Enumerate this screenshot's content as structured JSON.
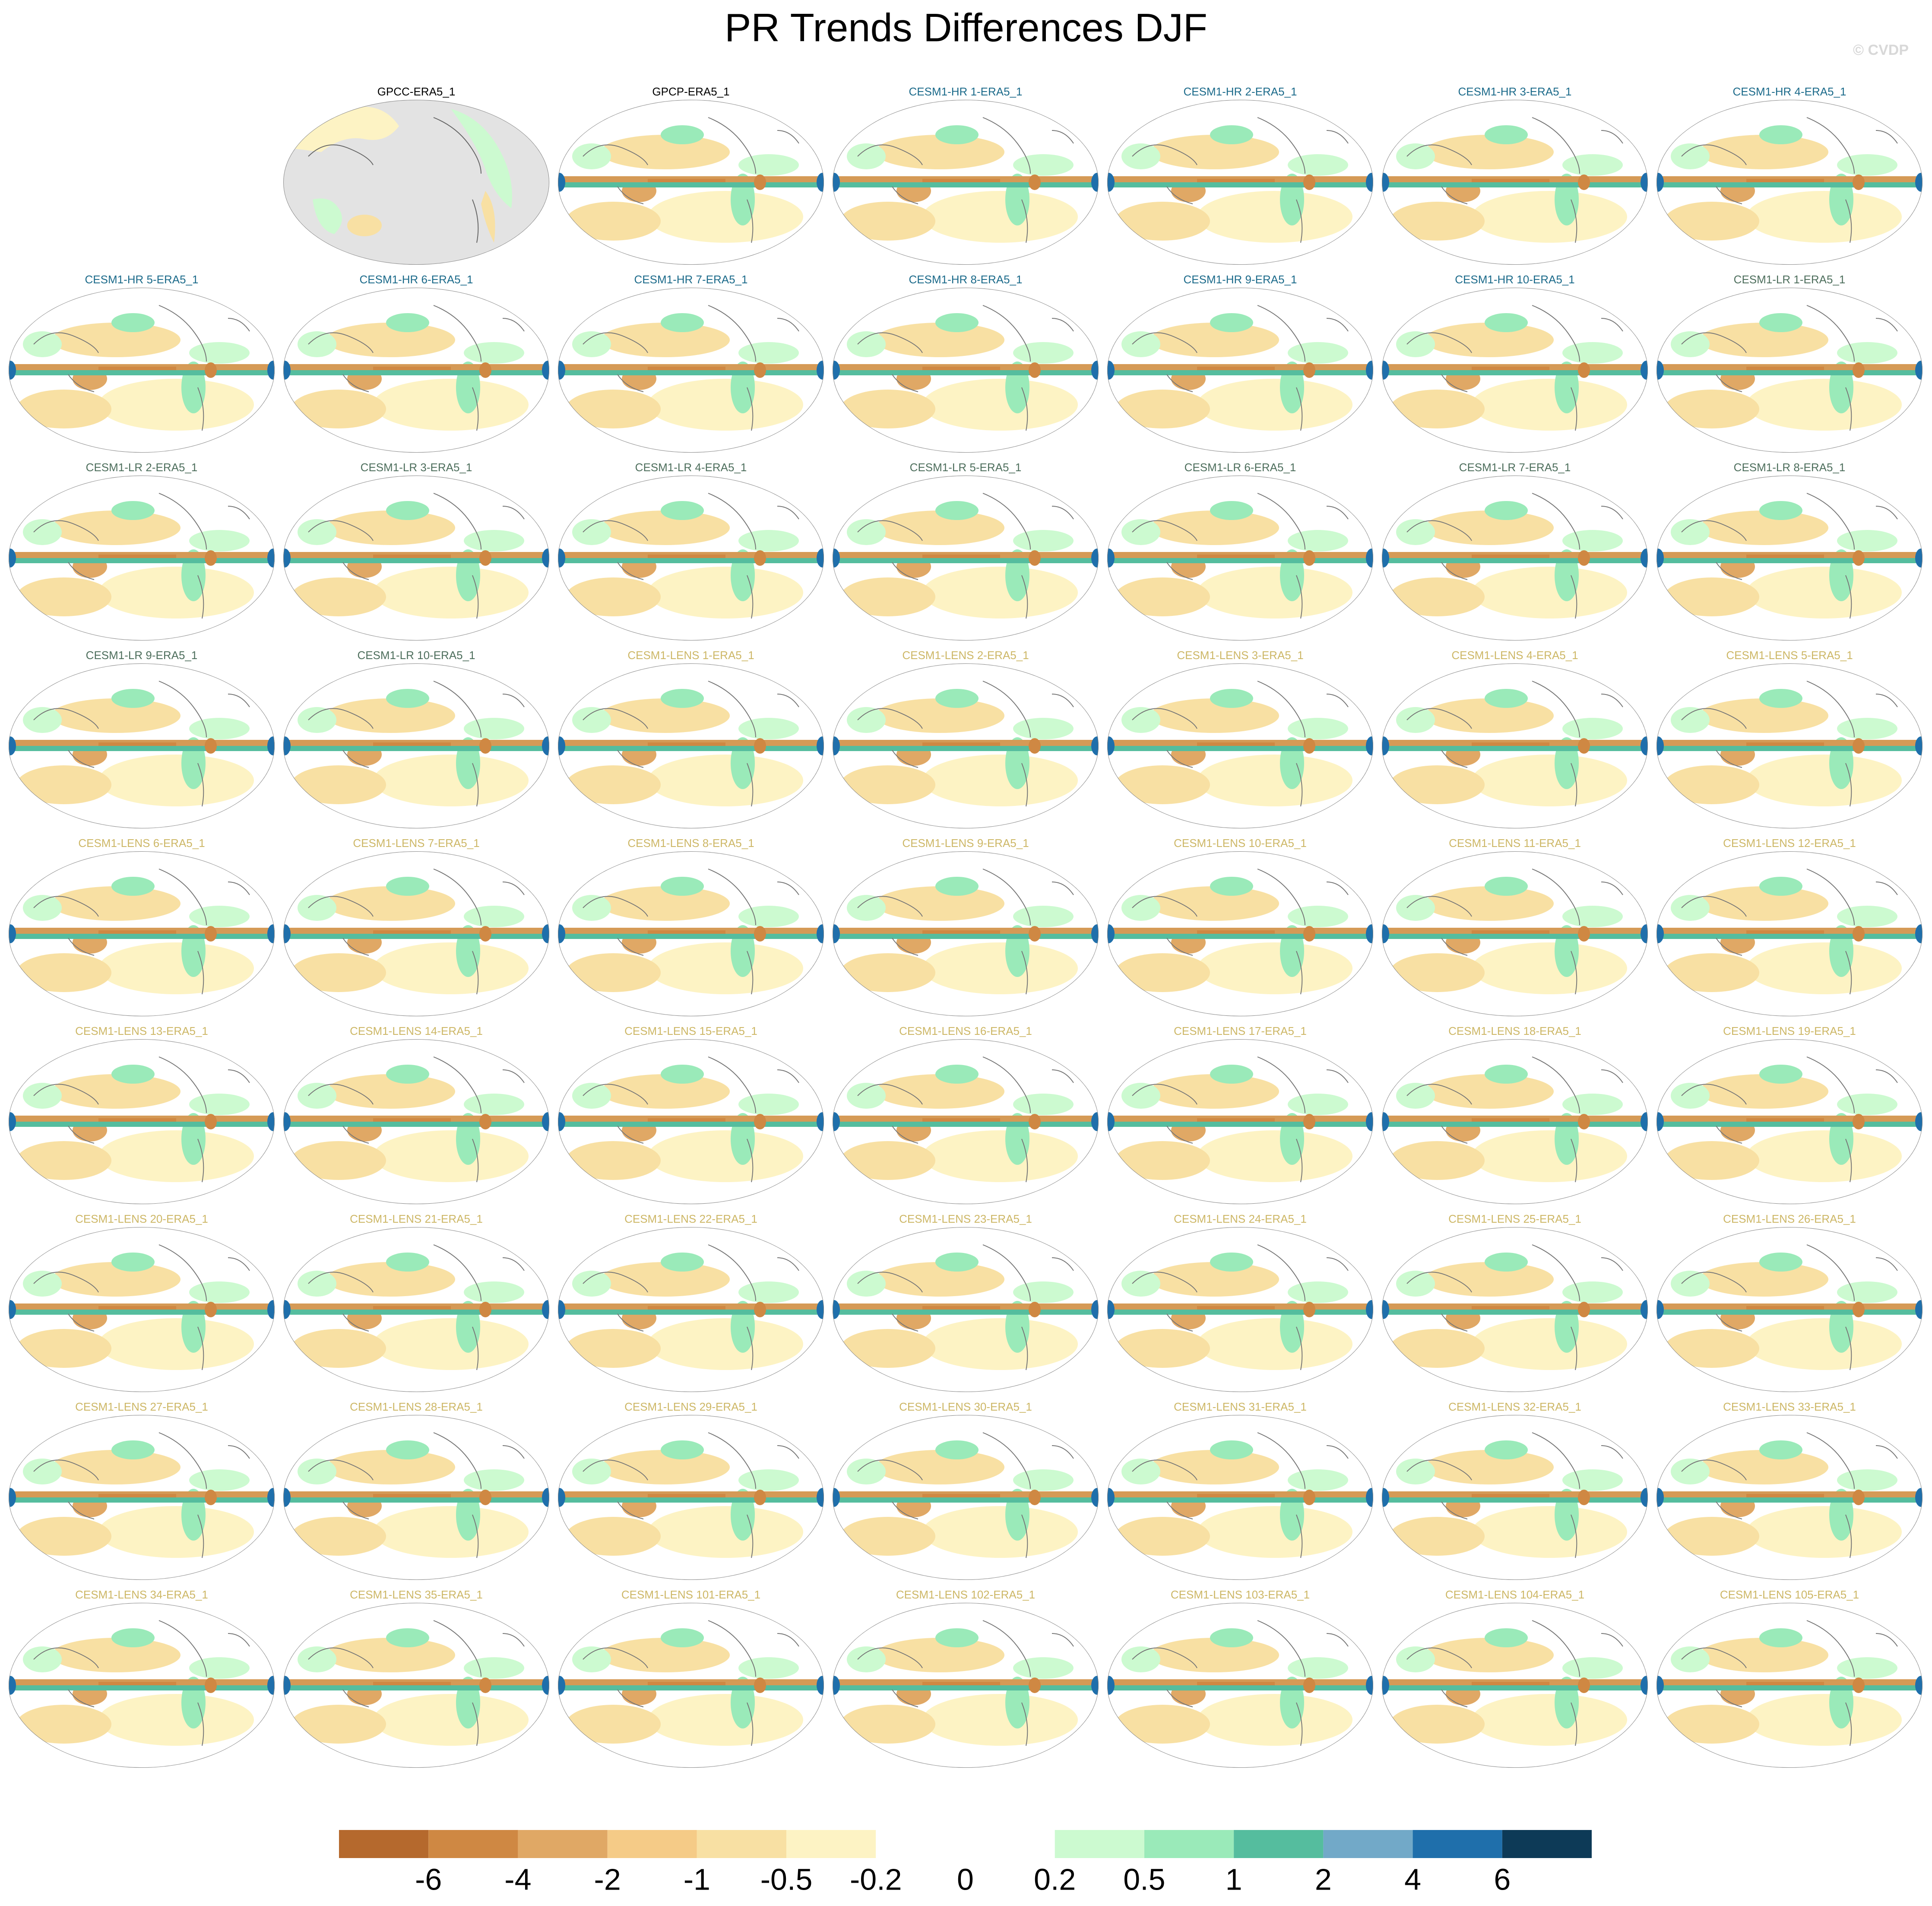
{
  "title": "PR Trends Differences DJF",
  "watermark": "© CVDP",
  "groups": [
    {
      "color": "#000000",
      "labels": [
        "GPCC-ERA5_1",
        "GPCP-ERA5_1"
      ]
    },
    {
      "color": "#1b6a8a",
      "labels": [
        "CESM1-HR 1-ERA5_1",
        "CESM1-HR 2-ERA5_1",
        "CESM1-HR 3-ERA5_1",
        "CESM1-HR 4-ERA5_1",
        "CESM1-HR 5-ERA5_1",
        "CESM1-HR 6-ERA5_1",
        "CESM1-HR 7-ERA5_1",
        "CESM1-HR 8-ERA5_1",
        "CESM1-HR 9-ERA5_1",
        "CESM1-HR 10-ERA5_1"
      ]
    },
    {
      "color": "#4d6e5c",
      "labels": [
        "CESM1-LR 1-ERA5_1",
        "CESM1-LR 2-ERA5_1",
        "CESM1-LR 3-ERA5_1",
        "CESM1-LR 4-ERA5_1",
        "CESM1-LR 5-ERA5_1",
        "CESM1-LR 6-ERA5_1",
        "CESM1-LR 7-ERA5_1",
        "CESM1-LR 8-ERA5_1",
        "CESM1-LR 9-ERA5_1",
        "CESM1-LR 10-ERA5_1"
      ]
    },
    {
      "color": "#cdb766",
      "labels": [
        "CESM1-LENS 1-ERA5_1",
        "CESM1-LENS 2-ERA5_1",
        "CESM1-LENS 3-ERA5_1",
        "CESM1-LENS 4-ERA5_1",
        "CESM1-LENS 5-ERA5_1",
        "CESM1-LENS 6-ERA5_1",
        "CESM1-LENS 7-ERA5_1",
        "CESM1-LENS 8-ERA5_1",
        "CESM1-LENS 9-ERA5_1",
        "CESM1-LENS 10-ERA5_1",
        "CESM1-LENS 11-ERA5_1",
        "CESM1-LENS 12-ERA5_1",
        "CESM1-LENS 13-ERA5_1",
        "CESM1-LENS 14-ERA5_1",
        "CESM1-LENS 15-ERA5_1",
        "CESM1-LENS 16-ERA5_1",
        "CESM1-LENS 17-ERA5_1",
        "CESM1-LENS 18-ERA5_1",
        "CESM1-LENS 19-ERA5_1",
        "CESM1-LENS 20-ERA5_1",
        "CESM1-LENS 21-ERA5_1",
        "CESM1-LENS 22-ERA5_1",
        "CESM1-LENS 23-ERA5_1",
        "CESM1-LENS 24-ERA5_1",
        "CESM1-LENS 25-ERA5_1",
        "CESM1-LENS 26-ERA5_1",
        "CESM1-LENS 27-ERA5_1",
        "CESM1-LENS 28-ERA5_1",
        "CESM1-LENS 29-ERA5_1",
        "CESM1-LENS 30-ERA5_1",
        "CESM1-LENS 31-ERA5_1",
        "CESM1-LENS 32-ERA5_1",
        "CESM1-LENS 33-ERA5_1",
        "CESM1-LENS 34-ERA5_1",
        "CESM1-LENS 35-ERA5_1",
        "CESM1-LENS 101-ERA5_1",
        "CESM1-LENS 102-ERA5_1",
        "CESM1-LENS 103-ERA5_1",
        "CESM1-LENS 104-ERA5_1",
        "CESM1-LENS 105-ERA5_1"
      ]
    }
  ],
  "colorbar": {
    "colors": [
      "#b5692d",
      "#cf8843",
      "#e0a865",
      "#f5cb87",
      "#f8e0a3",
      "#fdf3c4",
      "#ffffff",
      "#ffffff",
      "#ccfad0",
      "#9aeab9",
      "#55bd9e",
      "#72a9c8",
      "#1f6fab",
      "#0d3a57"
    ],
    "ticks": [
      -6,
      -4,
      -2,
      -1,
      -0.5,
      -0.2,
      0,
      0.2,
      0.5,
      1,
      2,
      4,
      6
    ]
  }
}
